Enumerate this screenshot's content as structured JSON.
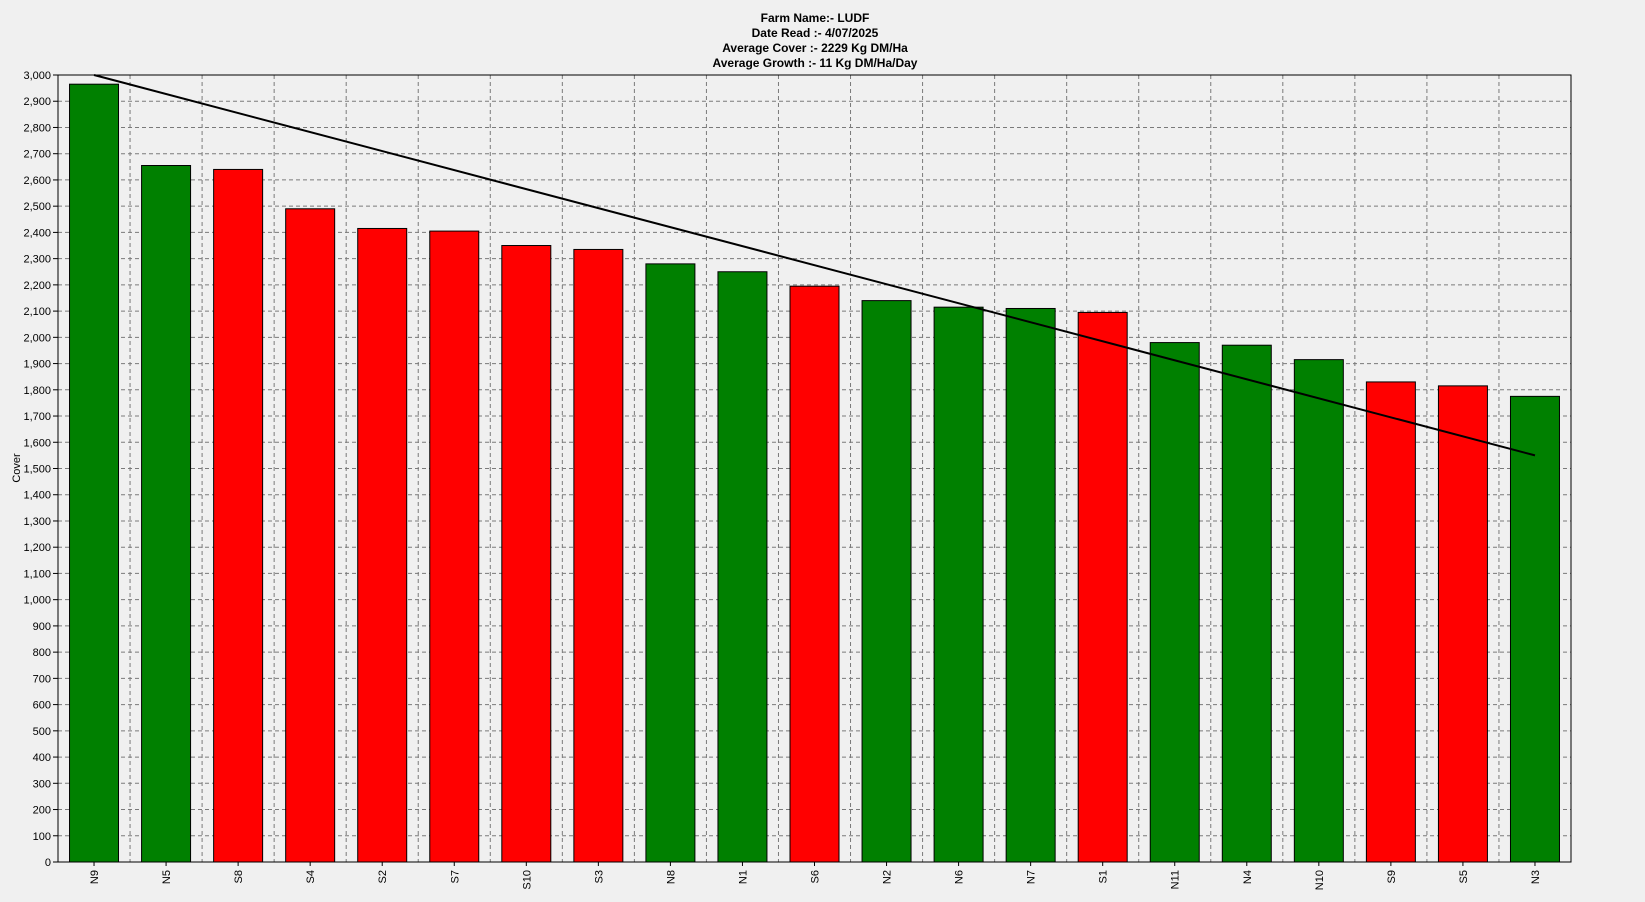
{
  "header": {
    "title_lines": [
      "Farm Name:- LUDF",
      "Date Read :-  4/07/2025",
      "Average Cover :-  2229 Kg DM/Ha",
      "Average Growth :-  11 Kg DM/Ha/Day"
    ]
  },
  "chart_data": {
    "type": "bar",
    "title": "",
    "xlabel": "",
    "ylabel": "Cover",
    "ylim": [
      0,
      3000
    ],
    "ytick_step": 100,
    "grid": true,
    "legend": "none",
    "categories": [
      "N9",
      "N5",
      "S8",
      "S4",
      "S2",
      "S7",
      "S10",
      "S3",
      "N8",
      "N1",
      "S6",
      "N2",
      "N6",
      "N7",
      "S1",
      "N11",
      "N4",
      "N10",
      "S9",
      "S5",
      "N3"
    ],
    "values": [
      2965,
      2655,
      2640,
      2490,
      2415,
      2405,
      2350,
      2335,
      2280,
      2250,
      2195,
      2140,
      2115,
      2110,
      2095,
      1980,
      1970,
      1915,
      1830,
      1815,
      1775
    ],
    "bar_colors": [
      "#008000",
      "#008000",
      "#ff0000",
      "#ff0000",
      "#ff0000",
      "#ff0000",
      "#ff0000",
      "#ff0000",
      "#008000",
      "#008000",
      "#ff0000",
      "#008000",
      "#008000",
      "#008000",
      "#ff0000",
      "#008000",
      "#008000",
      "#008000",
      "#ff0000",
      "#ff0000",
      "#008000"
    ],
    "target_line": {
      "color": "#000000",
      "start": {
        "category": "N9",
        "value": 3000
      },
      "end": {
        "category": "N3",
        "value": 1550
      }
    }
  },
  "colors": {
    "background": "#f0f0f0",
    "plot_background": "#f0f0f0",
    "grid": "#7a7a7a",
    "axis": "#000000"
  }
}
